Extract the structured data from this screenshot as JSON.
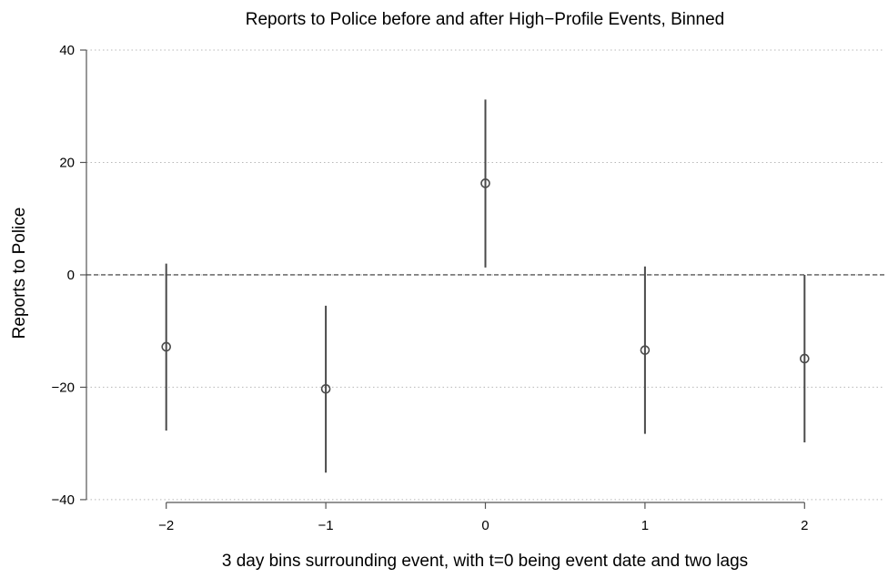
{
  "chart_data": {
    "type": "scatter",
    "title": "Reports to Police before and after High−Profile Events, Binned",
    "xlabel": "3 day bins surrounding event, with t=0 being event date and two lags",
    "ylabel": "Reports to Police",
    "x": [
      -2,
      -1,
      0,
      1,
      2
    ],
    "x_tick_labels": [
      "−2",
      "−1",
      "0",
      "1",
      "2"
    ],
    "y_ticks": [
      40,
      20,
      0,
      -20,
      -40
    ],
    "y_tick_labels": [
      "40",
      "20",
      "0",
      "−20",
      "−40"
    ],
    "xlim": [
      -2.5,
      2.5
    ],
    "ylim": [
      -40.5,
      40
    ],
    "series": [
      {
        "estimate": [
          -12.8,
          -20.3,
          16.3,
          -13.4,
          -14.9
        ],
        "ci_low": [
          -27.7,
          -35.2,
          1.3,
          -28.3,
          -29.8
        ],
        "ci_high": [
          2.0,
          -5.5,
          31.2,
          1.5,
          0.0
        ]
      }
    ],
    "reference_line_y": 0,
    "grid": "horizontal dotted",
    "legend": "none"
  }
}
